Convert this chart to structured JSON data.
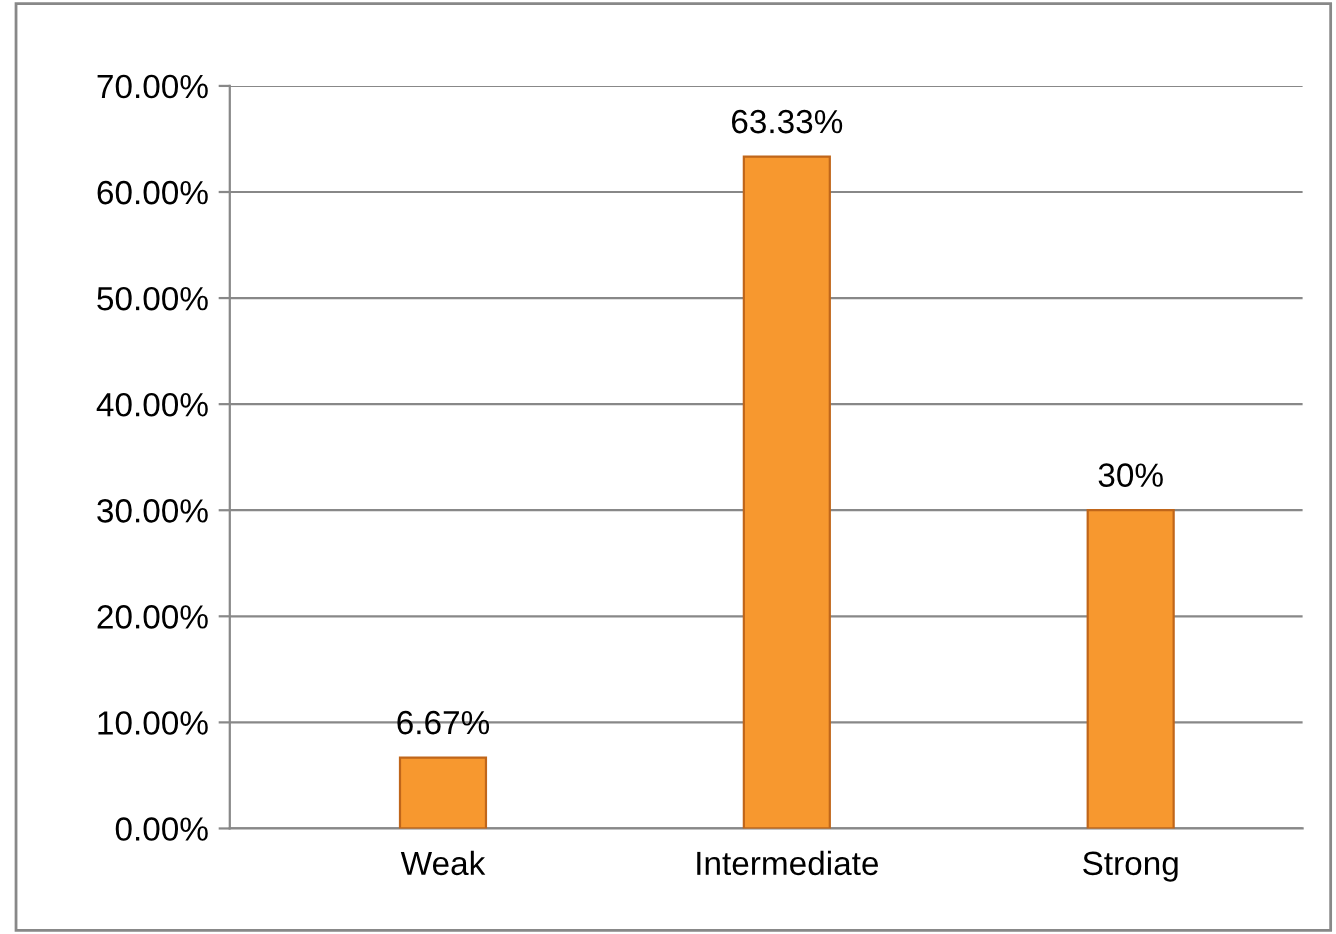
{
  "chart_data": {
    "type": "bar",
    "categories": [
      "Weak",
      "Intermediate",
      "Strong"
    ],
    "values": [
      6.67,
      63.33,
      30
    ],
    "value_labels": [
      "6.67%",
      "63.33%",
      "30%"
    ],
    "color": "#f7982f",
    "ylim": [
      0,
      70
    ],
    "yticks": [
      {
        "value": 0,
        "label": "0.00%"
      },
      {
        "value": 10,
        "label": "10.00%"
      },
      {
        "value": 20,
        "label": "20.00%"
      },
      {
        "value": 30,
        "label": "30.00%"
      },
      {
        "value": 40,
        "label": "40.00%"
      },
      {
        "value": 50,
        "label": "50.00%"
      },
      {
        "value": 60,
        "label": "60.00%"
      },
      {
        "value": 70,
        "label": "70.00%"
      }
    ],
    "grid": "y",
    "legend": false
  }
}
